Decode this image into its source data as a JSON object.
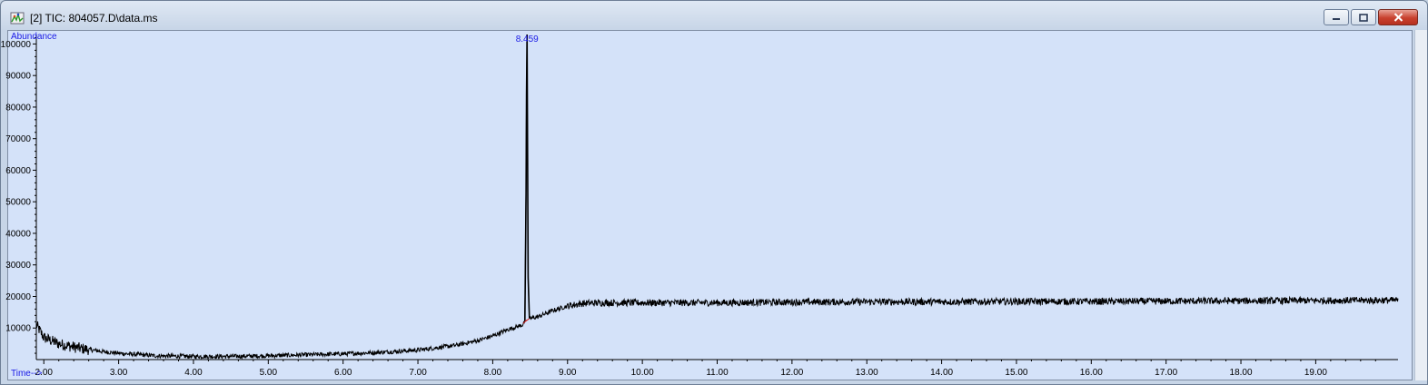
{
  "window": {
    "title": "[2] TIC: 804057.D\\data.ms",
    "icon": "chromatogram-app-icon",
    "controls": [
      "minimize-icon",
      "maximize-icon",
      "close-icon"
    ]
  },
  "chart_data": {
    "type": "line",
    "ylabel": "Abundance",
    "xlabel": "Time-->",
    "xlim": [
      1.9,
      20.1
    ],
    "ylim": [
      0,
      103000
    ],
    "x_ticks": [
      2,
      3,
      4,
      5,
      6,
      7,
      8,
      9,
      10,
      11,
      12,
      13,
      14,
      15,
      16,
      17,
      18,
      19
    ],
    "x_tick_labels": [
      "2.00",
      "3.00",
      "4.00",
      "5.00",
      "6.00",
      "7.00",
      "8.00",
      "9.00",
      "10.00",
      "11.00",
      "12.00",
      "13.00",
      "14.00",
      "15.00",
      "16.00",
      "17.00",
      "18.00",
      "19.00"
    ],
    "y_ticks": [
      10000,
      20000,
      30000,
      40000,
      50000,
      60000,
      70000,
      80000,
      90000,
      100000
    ],
    "y_tick_labels": [
      "10000",
      "20000",
      "30000",
      "40000",
      "50000",
      "60000",
      "70000",
      "80000",
      "90000",
      "100000"
    ],
    "grid": false,
    "background": "#d4e2f9",
    "line_color": "#000000",
    "peak_label_color": "#1a1ae6",
    "baseline_mark_color": "#d02020",
    "peaks": [
      {
        "rt": 8.459,
        "label": "8.459",
        "apex": 103000
      }
    ],
    "series": [
      {
        "x": [
          1.9,
          2.0,
          2.2,
          2.5,
          2.8,
          3.0,
          3.5,
          4.0,
          4.5,
          5.0,
          5.5,
          6.0,
          6.5,
          7.0,
          7.5,
          7.8,
          8.0,
          8.2,
          8.4,
          8.43,
          8.445,
          8.452,
          8.459,
          8.466,
          8.473,
          8.49,
          8.6,
          8.8,
          9.0,
          9.2,
          9.5,
          10.0,
          11.0,
          12.0,
          13.0,
          14.0,
          15.0,
          16.0,
          17.0,
          18.0,
          19.0,
          20.1
        ],
        "y": [
          11000,
          7000,
          5000,
          3500,
          2500,
          2000,
          1200,
          1000,
          1000,
          1200,
          1500,
          1800,
          2300,
          3000,
          4500,
          6000,
          7500,
          9500,
          11000,
          12000,
          52000,
          84000,
          103000,
          65000,
          26000,
          13000,
          13500,
          15500,
          17000,
          17800,
          18000,
          18000,
          18000,
          18200,
          18300,
          18300,
          18400,
          18400,
          18500,
          18600,
          18700,
          18800
        ]
      }
    ]
  }
}
